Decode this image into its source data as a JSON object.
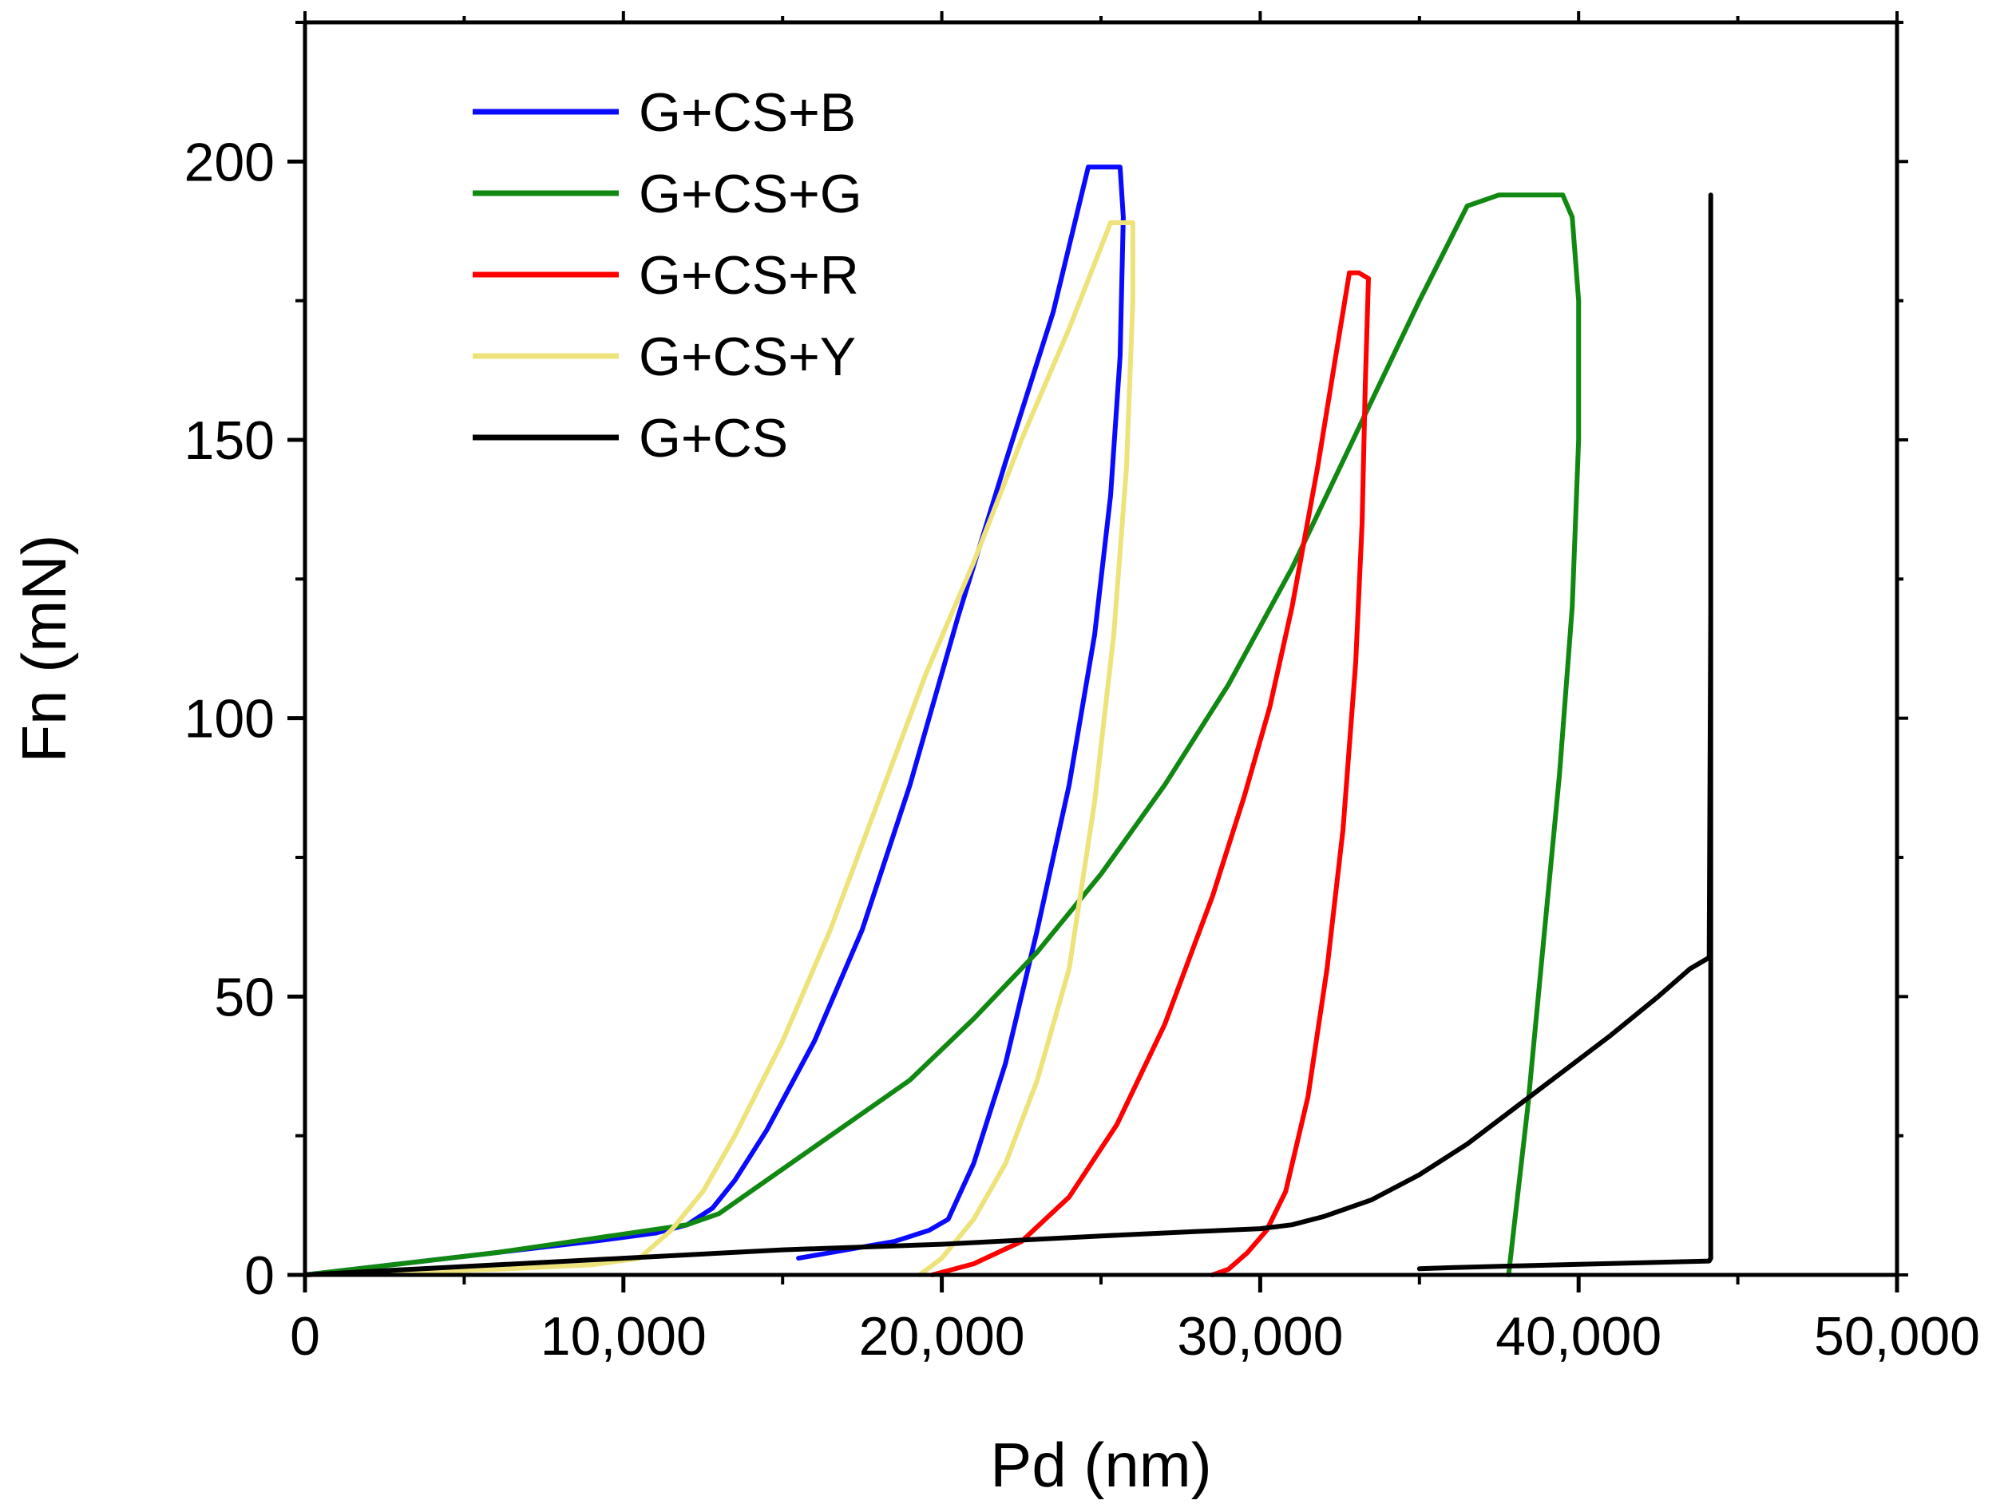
{
  "chart_data": {
    "type": "line",
    "title": "",
    "xlabel": "Pd (nm)",
    "ylabel": "Fn (mN)",
    "xlim": [
      0,
      50000
    ],
    "ylim": [
      0,
      225
    ],
    "xticks": [
      0,
      10000,
      20000,
      30000,
      40000,
      50000
    ],
    "xtick_labels": [
      "0",
      "10,000",
      "20,000",
      "30,000",
      "40,000",
      "50,000"
    ],
    "yticks": [
      0,
      50,
      100,
      150,
      200
    ],
    "ytick_labels": [
      "0",
      "50",
      "100",
      "150",
      "200"
    ],
    "grid": false,
    "legend_position": "top-left",
    "series": [
      {
        "name": "G+CS+B",
        "color": "#0a0aff",
        "x": [
          0,
          3000,
          6000,
          9000,
          11000,
          12000,
          12800,
          13500,
          14500,
          16000,
          17500,
          19000,
          20500,
          22000,
          23500,
          24600,
          25600,
          25700,
          25600,
          25300,
          24800,
          24000,
          23000,
          22000,
          21000,
          20200,
          19600,
          18500,
          17000,
          15500
        ],
        "y": [
          0,
          2,
          4,
          6,
          7.5,
          9,
          12,
          17,
          26,
          42,
          62,
          88,
          118,
          146,
          173,
          199,
          199,
          190,
          165,
          140,
          115,
          88,
          62,
          38,
          20,
          10,
          8,
          6,
          4.5,
          3
        ]
      },
      {
        "name": "G+CS+G",
        "color": "#118811",
        "x": [
          0,
          3000,
          6000,
          9000,
          12000,
          13000,
          15000,
          17000,
          19000,
          21000,
          23000,
          25000,
          27000,
          29000,
          31000,
          33000,
          35000,
          36500,
          37500,
          39500,
          39800,
          40000,
          40000,
          39800,
          39400,
          38900,
          38400,
          38000,
          37800
        ],
        "y": [
          0,
          2,
          4,
          6.5,
          9,
          11,
          19,
          27,
          35,
          46,
          58,
          72,
          88,
          106,
          127,
          151,
          175,
          192,
          194,
          194,
          190,
          175,
          150,
          120,
          90,
          60,
          30,
          10,
          0
        ]
      },
      {
        "name": "G+CS+R",
        "color": "#ff0000",
        "x": [
          19700,
          21000,
          22500,
          24000,
          25500,
          27000,
          28500,
          29500,
          30300,
          31000,
          31800,
          32400,
          32800,
          33100,
          33400,
          33300,
          33200,
          33000,
          32600,
          32100,
          31500,
          30800,
          30200,
          29600,
          29000,
          28500
        ],
        "y": [
          0,
          2,
          6,
          14,
          27,
          45,
          68,
          86,
          102,
          120,
          145,
          166,
          180,
          180,
          179,
          160,
          135,
          110,
          80,
          55,
          32,
          15,
          8,
          4,
          1,
          0
        ]
      },
      {
        "name": "G+CS+Y",
        "color": "#ede37a",
        "x": [
          0,
          3000,
          6000,
          9000,
          10500,
          11500,
          12500,
          13500,
          15000,
          16500,
          18000,
          19500,
          21000,
          22500,
          24000,
          25300,
          26000,
          26000,
          25800,
          25400,
          24800,
          24000,
          23000,
          22000,
          21000,
          20000,
          19300
        ],
        "y": [
          0,
          0.5,
          1,
          1.8,
          3,
          8,
          15,
          25,
          42,
          62,
          85,
          108,
          128,
          150,
          170,
          189,
          189,
          175,
          145,
          115,
          85,
          55,
          35,
          20,
          10,
          3,
          0
        ]
      },
      {
        "name": "G+CS",
        "color": "#000000",
        "x": [
          0,
          5000,
          10000,
          15000,
          20000,
          25000,
          28000,
          30000,
          31000,
          32000,
          33500,
          35000,
          36500,
          38000,
          39500,
          41000,
          42500,
          43500,
          44100,
          44150,
          44150,
          44150,
          44100,
          42000,
          40000,
          38000,
          36000,
          35000
        ],
        "y": [
          0,
          1.5,
          3,
          4.5,
          5.5,
          7,
          7.8,
          8.3,
          9,
          10.5,
          13.5,
          18,
          23.5,
          30,
          36.5,
          43,
          50,
          55,
          57,
          120,
          194,
          3,
          2.5,
          2.2,
          1.9,
          1.6,
          1.3,
          1.1
        ]
      }
    ]
  }
}
